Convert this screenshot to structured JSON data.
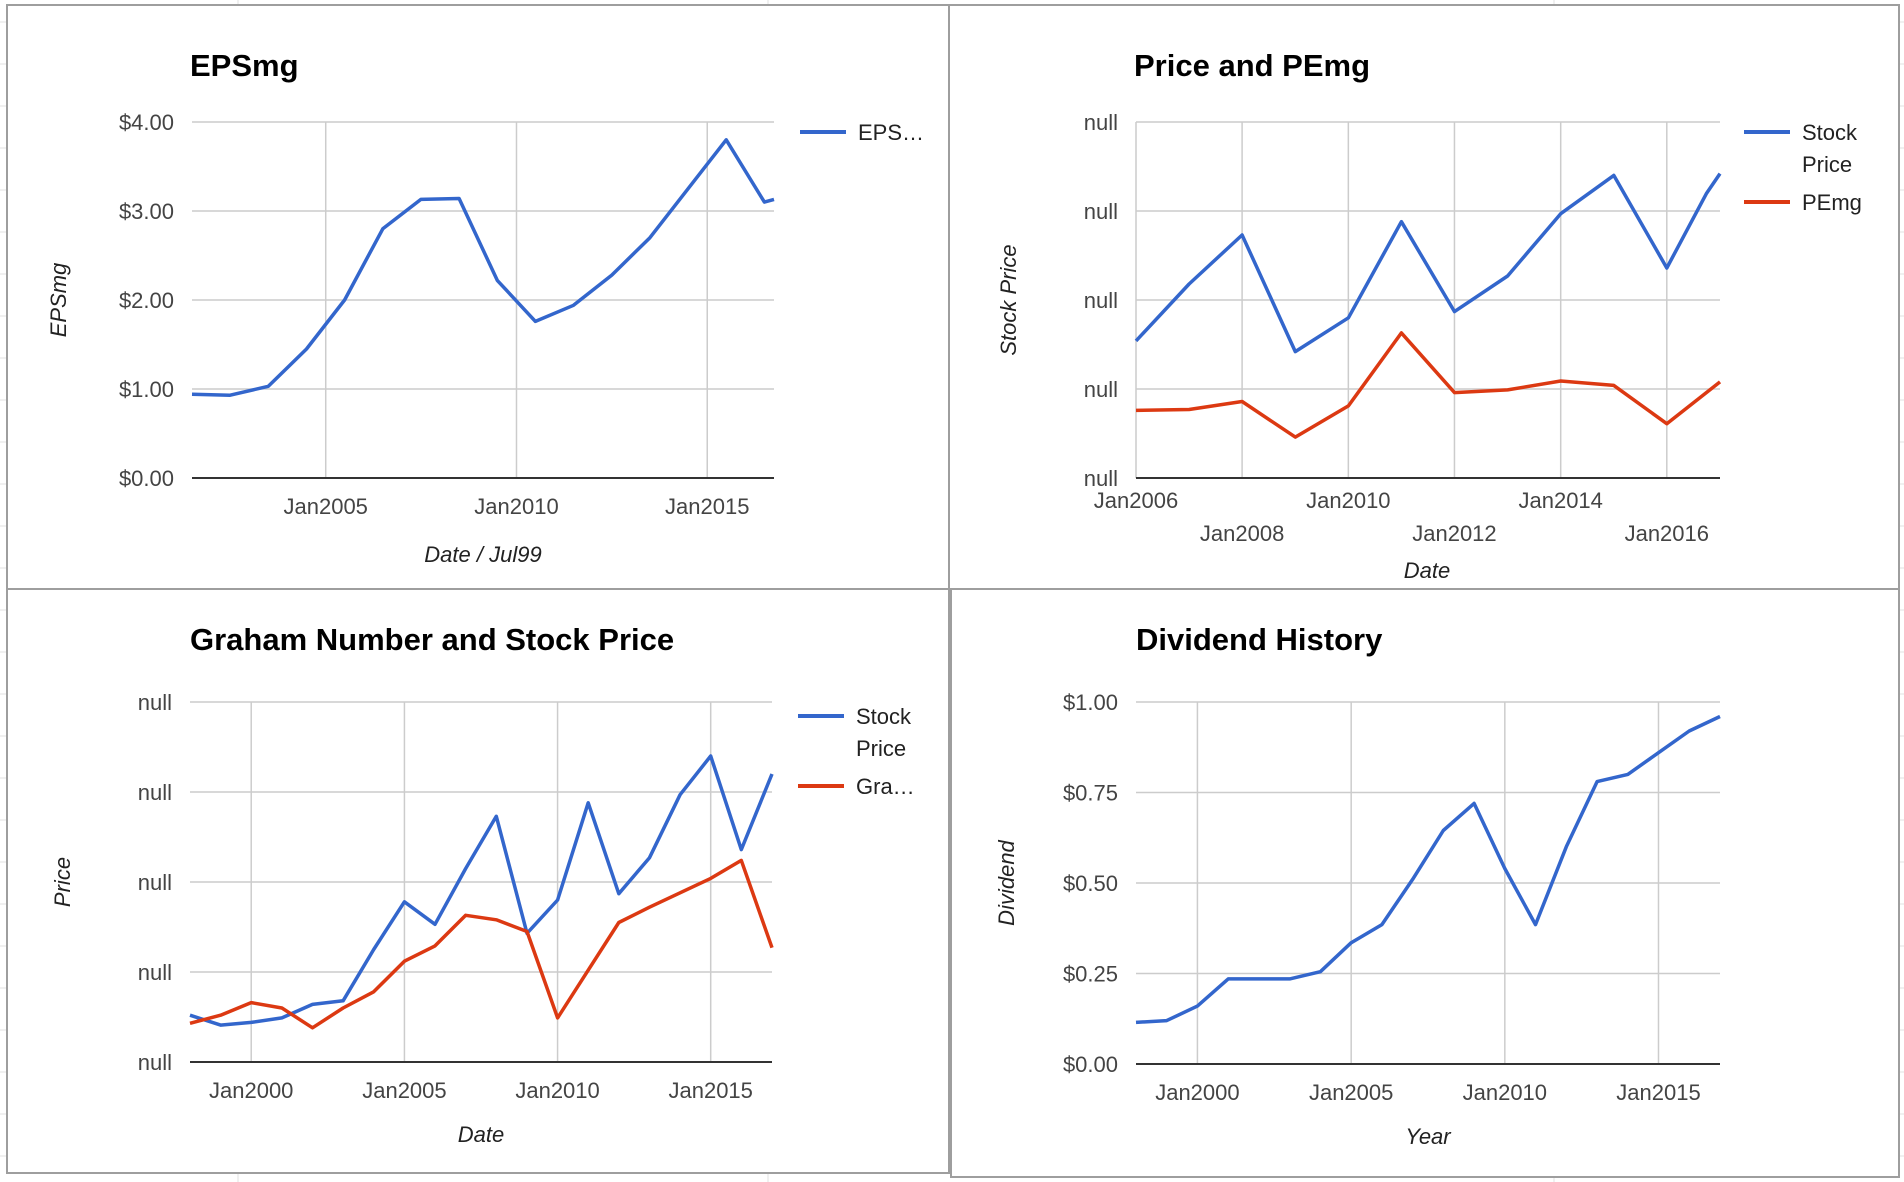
{
  "sheet": {
    "background": "#ffffff",
    "gridline_color": "#e2e2e2",
    "panel_border_color": "#9e9e9e"
  },
  "chart_data": [
    {
      "id": "epsmg",
      "type": "line",
      "title": "EPSmg",
      "xlabel": "Date / Jul99",
      "ylabel": "EPSmg",
      "x_type": "date",
      "xlim": [
        "2001-07-01",
        "2016-10-01"
      ],
      "ylim": [
        0,
        4
      ],
      "x_ticks": [
        "2005-01-01",
        "2010-01-01",
        "2015-01-01"
      ],
      "x_tick_labels": [
        "Jan2005",
        "Jan2010",
        "Jan2015"
      ],
      "y_ticks": [
        0,
        1,
        2,
        3,
        4
      ],
      "y_tick_labels": [
        "$0.00",
        "$1.00",
        "$2.00",
        "$3.00",
        "$4.00"
      ],
      "grid": true,
      "legend": "right",
      "series": [
        {
          "name": "EPS…",
          "color": "#3366cc",
          "points": [
            [
              "2001-07-01",
              0.94
            ],
            [
              "2002-07-01",
              0.93
            ],
            [
              "2003-07-01",
              1.03
            ],
            [
              "2004-07-01",
              1.45
            ],
            [
              "2005-07-01",
              2.0
            ],
            [
              "2006-07-01",
              2.8
            ],
            [
              "2007-07-01",
              3.13
            ],
            [
              "2008-07-01",
              3.14
            ],
            [
              "2009-07-01",
              2.22
            ],
            [
              "2010-07-01",
              1.76
            ],
            [
              "2011-07-01",
              1.94
            ],
            [
              "2012-07-01",
              2.28
            ],
            [
              "2013-07-01",
              2.7
            ],
            [
              "2014-07-01",
              3.25
            ],
            [
              "2015-07-01",
              3.8
            ],
            [
              "2016-07-01",
              3.1
            ],
            [
              "2016-10-01",
              3.13
            ]
          ]
        }
      ]
    },
    {
      "id": "price-pemg",
      "type": "line",
      "title": "Price and PEmg",
      "xlabel": "Date",
      "ylabel": "Stock Price",
      "x_type": "date",
      "xlim": [
        "2006-01-01",
        "2017-01-01"
      ],
      "ylim": [
        0,
        4
      ],
      "x_ticks": [
        "2006-01-01",
        "2008-01-01",
        "2010-01-01",
        "2012-01-01",
        "2014-01-01",
        "2016-01-01"
      ],
      "x_tick_labels": [
        "Jan2006",
        "Jan2008",
        "Jan2010",
        "Jan2012",
        "Jan2014",
        "Jan2016"
      ],
      "y_ticks": [
        0,
        1,
        2,
        3,
        4
      ],
      "y_tick_labels": [
        "null",
        "null",
        "null",
        "null",
        "null"
      ],
      "grid": true,
      "legend": "right",
      "series": [
        {
          "name": "Stock Price",
          "color": "#3366cc",
          "points": [
            [
              "2006-01-01",
              1.54
            ],
            [
              "2007-01-01",
              2.18
            ],
            [
              "2008-01-01",
              2.73
            ],
            [
              "2009-01-01",
              1.42
            ],
            [
              "2010-01-01",
              1.8
            ],
            [
              "2011-01-01",
              2.88
            ],
            [
              "2012-01-01",
              1.87
            ],
            [
              "2013-01-01",
              2.27
            ],
            [
              "2014-01-01",
              2.97
            ],
            [
              "2015-01-01",
              3.4
            ],
            [
              "2016-01-01",
              2.36
            ],
            [
              "2016-10-01",
              3.2
            ],
            [
              "2017-01-01",
              3.42
            ]
          ]
        },
        {
          "name": "PEmg",
          "color": "#dc3912",
          "points": [
            [
              "2006-01-01",
              0.76
            ],
            [
              "2007-01-01",
              0.77
            ],
            [
              "2008-01-01",
              0.86
            ],
            [
              "2009-01-01",
              0.46
            ],
            [
              "2010-01-01",
              0.81
            ],
            [
              "2011-01-01",
              1.63
            ],
            [
              "2012-01-01",
              0.96
            ],
            [
              "2013-01-01",
              0.99
            ],
            [
              "2014-01-01",
              1.09
            ],
            [
              "2015-01-01",
              1.04
            ],
            [
              "2016-01-01",
              0.61
            ],
            [
              "2017-01-01",
              1.08
            ]
          ]
        }
      ]
    },
    {
      "id": "graham-price",
      "type": "line",
      "title": "Graham Number and Stock Price",
      "xlabel": "Date",
      "ylabel": "Price",
      "x_type": "date",
      "xlim": [
        "1998-01-01",
        "2017-01-01"
      ],
      "ylim": [
        0,
        4
      ],
      "x_ticks": [
        "2000-01-01",
        "2005-01-01",
        "2010-01-01",
        "2015-01-01"
      ],
      "x_tick_labels": [
        "Jan2000",
        "Jan2005",
        "Jan2010",
        "Jan2015"
      ],
      "y_ticks": [
        0,
        1,
        2,
        3,
        4
      ],
      "y_tick_labels": [
        "null",
        "null",
        "null",
        "null",
        "null"
      ],
      "grid": true,
      "legend": "right",
      "series": [
        {
          "name": "Stock Price",
          "color": "#3366cc",
          "points": [
            [
              "1998-01-01",
              0.52
            ],
            [
              "1999-01-01",
              0.41
            ],
            [
              "2000-01-01",
              0.44
            ],
            [
              "2001-01-01",
              0.49
            ],
            [
              "2002-01-01",
              0.64
            ],
            [
              "2003-01-01",
              0.68
            ],
            [
              "2004-01-01",
              1.25
            ],
            [
              "2005-01-01",
              1.78
            ],
            [
              "2006-01-01",
              1.53
            ],
            [
              "2007-01-01",
              2.15
            ],
            [
              "2008-01-01",
              2.73
            ],
            [
              "2009-01-01",
              1.43
            ],
            [
              "2010-01-01",
              1.8
            ],
            [
              "2011-01-01",
              2.88
            ],
            [
              "2012-01-01",
              1.87
            ],
            [
              "2013-01-01",
              2.27
            ],
            [
              "2014-01-01",
              2.97
            ],
            [
              "2015-01-01",
              3.4
            ],
            [
              "2016-01-01",
              2.36
            ],
            [
              "2017-01-01",
              3.2
            ]
          ]
        },
        {
          "name": "Gra…",
          "color": "#dc3912",
          "points": [
            [
              "1998-01-01",
              0.43
            ],
            [
              "1999-01-01",
              0.52
            ],
            [
              "2000-01-01",
              0.66
            ],
            [
              "2001-01-01",
              0.6
            ],
            [
              "2002-01-01",
              0.38
            ],
            [
              "2003-01-01",
              0.6
            ],
            [
              "2004-01-01",
              0.78
            ],
            [
              "2005-01-01",
              1.12
            ],
            [
              "2006-01-01",
              1.29
            ],
            [
              "2007-01-01",
              1.63
            ],
            [
              "2008-01-01",
              1.58
            ],
            [
              "2009-01-01",
              1.45
            ],
            [
              "2010-01-01",
              0.49
            ],
            [
              "2011-01-01",
              1.02
            ],
            [
              "2012-01-01",
              1.55
            ],
            [
              "2013-01-01",
              1.72
            ],
            [
              "2014-01-01",
              1.88
            ],
            [
              "2015-01-01",
              2.04
            ],
            [
              "2016-01-01",
              2.24
            ],
            [
              "2017-01-01",
              1.27
            ]
          ]
        }
      ]
    },
    {
      "id": "dividend-history",
      "type": "line",
      "title": "Dividend History",
      "xlabel": "Year",
      "ylabel": "Dividend",
      "x_type": "date",
      "xlim": [
        "1998-01-01",
        "2017-01-01"
      ],
      "ylim": [
        0,
        1
      ],
      "x_ticks": [
        "2000-01-01",
        "2005-01-01",
        "2010-01-01",
        "2015-01-01"
      ],
      "x_tick_labels": [
        "Jan2000",
        "Jan2005",
        "Jan2010",
        "Jan2015"
      ],
      "y_ticks": [
        0,
        0.25,
        0.5,
        0.75,
        1.0
      ],
      "y_tick_labels": [
        "$0.00",
        "$0.25",
        "$0.50",
        "$0.75",
        "$1.00"
      ],
      "grid": true,
      "legend": "none",
      "series": [
        {
          "color": "#3366cc",
          "points": [
            [
              "1998-01-01",
              0.115
            ],
            [
              "1999-01-01",
              0.12
            ],
            [
              "2000-01-01",
              0.16
            ],
            [
              "2001-01-01",
              0.235
            ],
            [
              "2002-01-01",
              0.235
            ],
            [
              "2003-01-01",
              0.235
            ],
            [
              "2004-01-01",
              0.255
            ],
            [
              "2005-01-01",
              0.335
            ],
            [
              "2006-01-01",
              0.385
            ],
            [
              "2007-01-01",
              0.51
            ],
            [
              "2008-01-01",
              0.645
            ],
            [
              "2009-01-01",
              0.72
            ],
            [
              "2010-01-01",
              0.54
            ],
            [
              "2011-01-01",
              0.385
            ],
            [
              "2012-01-01",
              0.6
            ],
            [
              "2013-01-01",
              0.78
            ],
            [
              "2014-01-01",
              0.8
            ],
            [
              "2015-01-01",
              0.86
            ],
            [
              "2016-01-01",
              0.92
            ],
            [
              "2017-01-01",
              0.96
            ]
          ]
        }
      ]
    }
  ]
}
